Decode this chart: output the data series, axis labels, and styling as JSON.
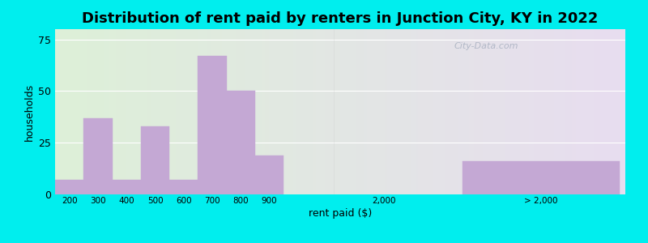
{
  "title": "Distribution of rent paid by renters in Junction City, KY in 2022",
  "xlabel": "rent paid ($)",
  "ylabel": "households",
  "bar_color": "#c4a8d4",
  "background_color": "#00eeee",
  "plot_bg_left": "#ddf0d8",
  "plot_bg_right": "#e8ddf0",
  "bars_left": {
    "labels": [
      "200",
      "300",
      "400",
      "500",
      "600",
      "700",
      "800",
      "900"
    ],
    "values": [
      7,
      37,
      7,
      33,
      7,
      67,
      50,
      19
    ]
  },
  "bar_gt2000": {
    "label": "> 2,000",
    "value": 16
  },
  "label_2000": "2,000",
  "ylim": [
    0,
    80
  ],
  "yticks": [
    0,
    25,
    50,
    75
  ],
  "watermark": "City-Data.com",
  "title_fontsize": 13,
  "axis_fontsize": 9
}
